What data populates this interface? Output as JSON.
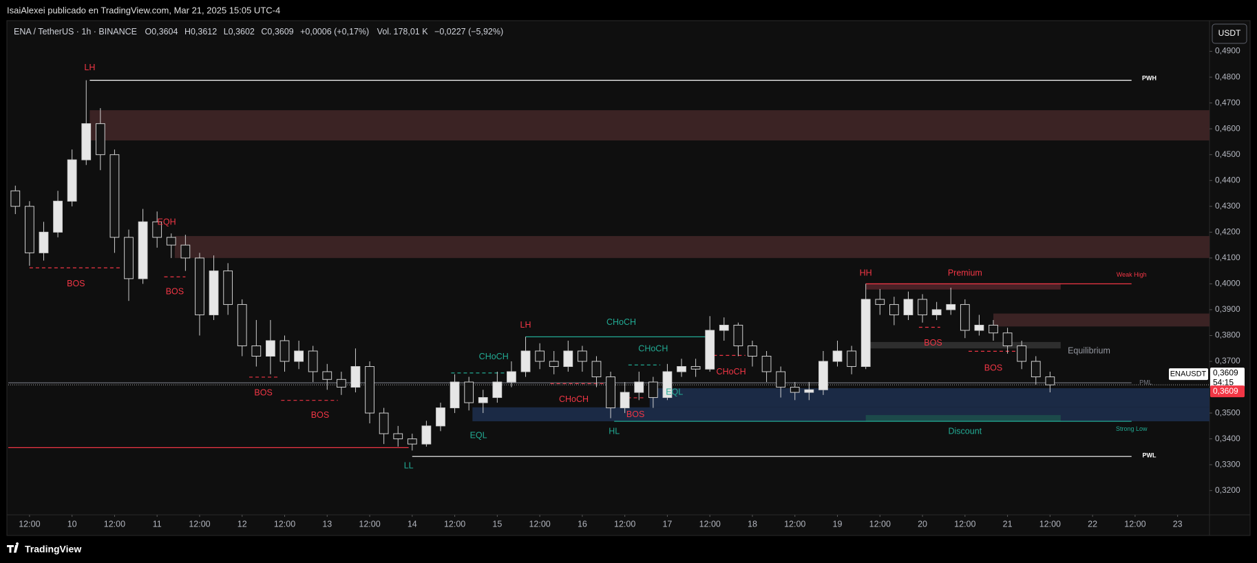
{
  "publish_line": "IsaiAlexei publicado en TradingView.com, Mar 21, 2025 15:05 UTC-4",
  "header": {
    "symbol": "ENA / TetherUS · 1h · BINANCE",
    "ohlc": [
      {
        "key": "O",
        "value": "0,3604"
      },
      {
        "key": "H",
        "value": "0,3612"
      },
      {
        "key": "L",
        "value": "0,3602"
      },
      {
        "key": "C",
        "value": "0,3609"
      }
    ],
    "change": "+0,0006 (+0,17%)",
    "volume": {
      "key": "Vol.",
      "value": "178,01 K"
    },
    "extra": "−0,0227 (−5,92%)"
  },
  "currency_button": "USDT",
  "brand": "TradingView",
  "chart_data": {
    "type": "candlestick",
    "up_color": "#e6e6e6",
    "down_color": "#141414",
    "wick_color": "#d0d0d0",
    "grid": false,
    "x": [
      -16,
      -12,
      -8,
      -4,
      0,
      4,
      8,
      12,
      16,
      20,
      24,
      28,
      32,
      36,
      40,
      44,
      48,
      52,
      56,
      60,
      64,
      68,
      72,
      76,
      80,
      84,
      88,
      92,
      96,
      100,
      104,
      108,
      112,
      116,
      120,
      124,
      128,
      132,
      136,
      140,
      144,
      148,
      152,
      156,
      160,
      164,
      168,
      172,
      176,
      180,
      184,
      188,
      192,
      196,
      200,
      204,
      208,
      212,
      216,
      220,
      224,
      228,
      232,
      236,
      240,
      244,
      248,
      252,
      256,
      260,
      264,
      268,
      272,
      276
    ],
    "open": [
      0.436,
      0.43,
      0.412,
      0.42,
      0.432,
      0.448,
      0.462,
      0.45,
      0.418,
      0.402,
      0.424,
      0.418,
      0.415,
      0.41,
      0.388,
      0.405,
      0.392,
      0.376,
      0.372,
      0.378,
      0.37,
      0.374,
      0.366,
      0.363,
      0.36,
      0.368,
      0.35,
      0.342,
      0.34,
      0.338,
      0.345,
      0.352,
      0.362,
      0.354,
      0.356,
      0.362,
      0.366,
      0.374,
      0.37,
      0.368,
      0.374,
      0.37,
      0.364,
      0.352,
      0.358,
      0.362,
      0.356,
      0.366,
      0.368,
      0.367,
      0.382,
      0.384,
      0.376,
      0.372,
      0.366,
      0.36,
      0.358,
      0.359,
      0.37,
      0.374,
      0.368,
      0.394,
      0.392,
      0.388,
      0.394,
      0.388,
      0.39,
      0.392,
      0.382,
      0.384,
      0.381,
      0.376,
      0.37,
      0.364
    ],
    "high": [
      0.438,
      0.432,
      0.424,
      0.436,
      0.452,
      0.4788,
      0.468,
      0.452,
      0.421,
      0.429,
      0.428,
      0.4195,
      0.419,
      0.412,
      0.411,
      0.408,
      0.394,
      0.386,
      0.386,
      0.38,
      0.378,
      0.376,
      0.369,
      0.366,
      0.375,
      0.37,
      0.352,
      0.345,
      0.342,
      0.347,
      0.354,
      0.365,
      0.364,
      0.359,
      0.366,
      0.37,
      0.3795,
      0.377,
      0.374,
      0.378,
      0.376,
      0.372,
      0.366,
      0.362,
      0.366,
      0.364,
      0.369,
      0.371,
      0.371,
      0.3875,
      0.387,
      0.385,
      0.378,
      0.374,
      0.368,
      0.362,
      0.362,
      0.374,
      0.378,
      0.376,
      0.4,
      0.398,
      0.395,
      0.397,
      0.396,
      0.393,
      0.3985,
      0.394,
      0.388,
      0.386,
      0.383,
      0.378,
      0.372,
      0.366
    ],
    "low": [
      0.427,
      0.407,
      0.409,
      0.418,
      0.43,
      0.446,
      0.444,
      0.412,
      0.3934,
      0.4,
      0.414,
      0.41,
      0.405,
      0.38,
      0.386,
      0.388,
      0.372,
      0.368,
      0.365,
      0.366,
      0.367,
      0.362,
      0.359,
      0.357,
      0.358,
      0.346,
      0.338,
      0.337,
      0.3355,
      0.337,
      0.343,
      0.35,
      0.351,
      0.35,
      0.354,
      0.36,
      0.364,
      0.367,
      0.365,
      0.366,
      0.366,
      0.36,
      0.348,
      0.35,
      0.355,
      0.352,
      0.355,
      0.364,
      0.364,
      0.366,
      0.378,
      0.372,
      0.368,
      0.362,
      0.356,
      0.355,
      0.355,
      0.357,
      0.368,
      0.365,
      0.367,
      0.388,
      0.384,
      0.386,
      0.385,
      0.386,
      0.388,
      0.379,
      0.38,
      0.378,
      0.373,
      0.367,
      0.361,
      0.358
    ],
    "close": [
      0.43,
      0.412,
      0.42,
      0.432,
      0.448,
      0.462,
      0.45,
      0.418,
      0.402,
      0.424,
      0.418,
      0.415,
      0.41,
      0.388,
      0.405,
      0.392,
      0.376,
      0.372,
      0.378,
      0.37,
      0.374,
      0.366,
      0.363,
      0.36,
      0.368,
      0.35,
      0.342,
      0.34,
      0.338,
      0.345,
      0.352,
      0.362,
      0.354,
      0.356,
      0.362,
      0.366,
      0.374,
      0.37,
      0.368,
      0.374,
      0.37,
      0.364,
      0.352,
      0.358,
      0.362,
      0.356,
      0.366,
      0.368,
      0.367,
      0.382,
      0.384,
      0.376,
      0.372,
      0.366,
      0.36,
      0.358,
      0.359,
      0.37,
      0.374,
      0.368,
      0.394,
      0.392,
      0.388,
      0.394,
      0.388,
      0.39,
      0.392,
      0.382,
      0.384,
      0.381,
      0.376,
      0.37,
      0.364,
      0.3609
    ],
    "xlim": [
      -18,
      321
    ],
    "ylim": [
      0.3114,
      0.5016
    ],
    "yticks": [
      {
        "value": 0.32,
        "label": "0,3200"
      },
      {
        "value": 0.33,
        "label": "0,3300"
      },
      {
        "value": 0.34,
        "label": "0,3400"
      },
      {
        "value": 0.35,
        "label": "0,3500"
      },
      {
        "value": 0.36,
        "label": "0,3600"
      },
      {
        "value": 0.37,
        "label": "0,3700"
      },
      {
        "value": 0.38,
        "label": "0,3800"
      },
      {
        "value": 0.39,
        "label": "0,3900"
      },
      {
        "value": 0.4,
        "label": "0,4000"
      },
      {
        "value": 0.41,
        "label": "0,4100"
      },
      {
        "value": 0.42,
        "label": "0,4200"
      },
      {
        "value": 0.43,
        "label": "0,4300"
      },
      {
        "value": 0.44,
        "label": "0,4400"
      },
      {
        "value": 0.45,
        "label": "0,4500"
      },
      {
        "value": 0.46,
        "label": "0,4600"
      },
      {
        "value": 0.47,
        "label": "0,4700"
      },
      {
        "value": 0.48,
        "label": "0,4800"
      },
      {
        "value": 0.49,
        "label": "0,4900"
      }
    ],
    "xticks": [
      {
        "value": -12,
        "label": "12:00"
      },
      {
        "value": 0,
        "label": "10"
      },
      {
        "value": 12,
        "label": "12:00"
      },
      {
        "value": 24,
        "label": "11"
      },
      {
        "value": 36,
        "label": "12:00"
      },
      {
        "value": 48,
        "label": "12"
      },
      {
        "value": 60,
        "label": "12:00"
      },
      {
        "value": 72,
        "label": "13"
      },
      {
        "value": 84,
        "label": "12:00"
      },
      {
        "value": 96,
        "label": "14"
      },
      {
        "value": 108,
        "label": "12:00"
      },
      {
        "value": 120,
        "label": "15"
      },
      {
        "value": 132,
        "label": "12:00"
      },
      {
        "value": 144,
        "label": "16"
      },
      {
        "value": 156,
        "label": "12:00"
      },
      {
        "value": 168,
        "label": "17"
      },
      {
        "value": 180,
        "label": "12:00"
      },
      {
        "value": 192,
        "label": "18"
      },
      {
        "value": 204,
        "label": "12:00"
      },
      {
        "value": 216,
        "label": "19"
      },
      {
        "value": 228,
        "label": "12:00"
      },
      {
        "value": 240,
        "label": "20"
      },
      {
        "value": 252,
        "label": "12:00"
      },
      {
        "value": 264,
        "label": "21"
      },
      {
        "value": 276,
        "label": "12:00"
      },
      {
        "value": 288,
        "label": "22"
      },
      {
        "value": 300,
        "label": "12:00"
      },
      {
        "value": 312,
        "label": "23"
      }
    ],
    "zones": [
      {
        "x": [
          5,
          321
        ],
        "y": [
          0.4555,
          0.4672
        ],
        "color": "#3b2324"
      },
      {
        "x": [
          29,
          321
        ],
        "y": [
          0.41,
          0.4185
        ],
        "color": "#3b2324"
      },
      {
        "x": [
          224,
          279
        ],
        "y": [
          0.3978,
          0.4002
        ],
        "color": "#4a2126"
      },
      {
        "x": [
          260,
          321
        ],
        "y": [
          0.3835,
          0.3885
        ],
        "color": "#3b2324"
      },
      {
        "x": [
          224,
          279
        ],
        "y": [
          0.375,
          0.3775
        ],
        "color": "#2e2e2e"
      },
      {
        "x": [
          163,
          321
        ],
        "y": [
          0.3522,
          0.3596
        ],
        "color": "#1b2a45"
      },
      {
        "x": [
          113,
          321
        ],
        "y": [
          0.3468,
          0.3522
        ],
        "color": "#1b2a45"
      },
      {
        "x": [
          224,
          279
        ],
        "y": [
          0.3468,
          0.3492
        ],
        "color": "#1c4a4a"
      }
    ],
    "lines": [
      {
        "x": [
          5,
          299
        ],
        "y": 0.4788,
        "color": "#ffffff",
        "dashed": false
      },
      {
        "x": [
          96,
          299
        ],
        "y": 0.3332,
        "color": "#ffffff",
        "dashed": false
      },
      {
        "x": [
          -18,
          95
        ],
        "y": 0.3366,
        "color": "#f23645",
        "dashed": false
      },
      {
        "x": [
          224,
          299
        ],
        "y": 0.4,
        "color": "#f23645",
        "dashed": false
      },
      {
        "x": [
          153,
          299
        ],
        "y": 0.3468,
        "color": "#22ab94",
        "dashed": false
      },
      {
        "x": [
          128,
          180
        ],
        "y": 0.3795,
        "color": "#22ab94",
        "dashed": false
      },
      {
        "x": [
          -18,
          299
        ],
        "y": 0.3617,
        "color": "#787b86",
        "dashed": false
      },
      {
        "x": [
          -12,
          13.6
        ],
        "y": 0.4062,
        "color": "#f23645",
        "dashed": true
      },
      {
        "x": [
          26,
          32
        ],
        "y": 0.4027,
        "color": "#f23645",
        "dashed": true
      },
      {
        "x": [
          50,
          58
        ],
        "y": 0.3639,
        "color": "#f23645",
        "dashed": true
      },
      {
        "x": [
          59,
          75
        ],
        "y": 0.3549,
        "color": "#f23645",
        "dashed": true
      },
      {
        "x": [
          107,
          124
        ],
        "y": 0.3655,
        "color": "#22ab94",
        "dashed": true
      },
      {
        "x": [
          135,
          152
        ],
        "y": 0.3614,
        "color": "#f23645",
        "dashed": true
      },
      {
        "x": [
          157,
          166
        ],
        "y": 0.3686,
        "color": "#22ab94",
        "dashed": true
      },
      {
        "x": [
          155,
          162
        ],
        "y": 0.3559,
        "color": "#f23645",
        "dashed": true
      },
      {
        "x": [
          181,
          190
        ],
        "y": 0.3723,
        "color": "#f23645",
        "dashed": true
      },
      {
        "x": [
          239,
          245
        ],
        "y": 0.3832,
        "color": "#f23645",
        "dashed": true
      },
      {
        "x": [
          253,
          267
        ],
        "y": 0.3739,
        "color": "#f23645",
        "dashed": true
      }
    ],
    "labels": [
      {
        "text": "LH",
        "x": 5,
        "y": 0.4835,
        "color": "#f23645"
      },
      {
        "text": "BOS",
        "x": 1.1,
        "y": 0.3999,
        "color": "#f23645"
      },
      {
        "text": "EQH",
        "x": 26.7,
        "y": 0.4238,
        "color": "#f23645"
      },
      {
        "text": "BOS",
        "x": 29,
        "y": 0.3968,
        "color": "#f23645"
      },
      {
        "text": "BOS",
        "x": 54,
        "y": 0.3577,
        "color": "#f23645"
      },
      {
        "text": "BOS",
        "x": 70,
        "y": 0.349,
        "color": "#f23645"
      },
      {
        "text": "LL",
        "x": 95,
        "y": 0.3294,
        "color": "#22ab94"
      },
      {
        "text": "EQL",
        "x": 114.7,
        "y": 0.3412,
        "color": "#22ab94"
      },
      {
        "text": "CHoCH",
        "x": 119,
        "y": 0.3717,
        "color": "#22ab94"
      },
      {
        "text": "LH",
        "x": 128,
        "y": 0.384,
        "color": "#f23645"
      },
      {
        "text": "CHoCH",
        "x": 155,
        "y": 0.385,
        "color": "#22ab94"
      },
      {
        "text": "CHoCH",
        "x": 141.6,
        "y": 0.3552,
        "color": "#f23645"
      },
      {
        "text": "CHoCH",
        "x": 164,
        "y": 0.3748,
        "color": "#22ab94"
      },
      {
        "text": "EQL",
        "x": 170,
        "y": 0.358,
        "color": "#22ab94"
      },
      {
        "text": "BOS",
        "x": 159,
        "y": 0.3493,
        "color": "#f23645"
      },
      {
        "text": "HL",
        "x": 153,
        "y": 0.3428,
        "color": "#22ab94"
      },
      {
        "text": "CHoCH",
        "x": 186,
        "y": 0.3658,
        "color": "#f23645"
      },
      {
        "text": "HH",
        "x": 224,
        "y": 0.404,
        "color": "#f23645"
      },
      {
        "text": "Premium",
        "x": 252,
        "y": 0.404,
        "color": "#f23645"
      },
      {
        "text": "Equilibrium",
        "x": 287,
        "y": 0.3739,
        "color": "#9598a1"
      },
      {
        "text": "BOS",
        "x": 243,
        "y": 0.377,
        "color": "#f23645"
      },
      {
        "text": "BOS",
        "x": 260,
        "y": 0.3673,
        "color": "#f23645"
      },
      {
        "text": "Discount",
        "x": 252,
        "y": 0.3428,
        "color": "#22ab94"
      },
      {
        "text": "Weak High",
        "x": 299,
        "y": 0.4034,
        "color": "#f23645",
        "small": true
      },
      {
        "text": "Strong Low",
        "x": 299,
        "y": 0.3437,
        "color": "#22ab94",
        "small": true
      },
      {
        "text": "PWH",
        "x": 304,
        "y": 0.4794,
        "color": "#ffffff",
        "small": true
      },
      {
        "text": "PWL",
        "x": 304,
        "y": 0.3335,
        "color": "#ffffff",
        "small": true
      },
      {
        "text": "PML",
        "x": 303,
        "y": 0.3617,
        "color": "#787b86",
        "small": true
      }
    ],
    "price_scale": {
      "symbol": "ENAUSDT",
      "last": {
        "value": 0.3609,
        "label": "0,3609"
      },
      "countdown": "54:15",
      "last_color": "#f23645"
    }
  }
}
